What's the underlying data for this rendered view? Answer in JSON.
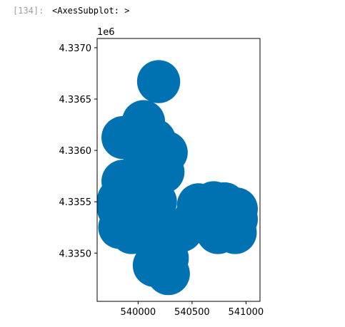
{
  "cell": {
    "prompt": "[134]:",
    "output": "<AxesSubplot: >"
  },
  "chart_data": {
    "type": "scatter",
    "title": "",
    "xlabel": "",
    "ylabel": "",
    "y_offset_label": "1e6",
    "xlim": [
      539620,
      541130
    ],
    "ylim": [
      4334530,
      4337090
    ],
    "x_ticks": [
      540000,
      540500,
      541000
    ],
    "x_tick_labels": [
      "540000",
      "540500",
      "541000"
    ],
    "y_ticks": [
      4335000,
      4335500,
      4336000,
      4336500,
      4337000
    ],
    "y_tick_labels": [
      "4.3350",
      "4.3355",
      "4.3360",
      "4.3365",
      "4.3370"
    ],
    "grid": false,
    "legend": "none",
    "color": "#0072b2",
    "marker_radius_data": 200,
    "points": [
      {
        "x": 540190,
        "y": 4336670
      },
      {
        "x": 539860,
        "y": 4336125
      },
      {
        "x": 540050,
        "y": 4336280
      },
      {
        "x": 540150,
        "y": 4336100
      },
      {
        "x": 540260,
        "y": 4335980
      },
      {
        "x": 540060,
        "y": 4335880
      },
      {
        "x": 540230,
        "y": 4335790
      },
      {
        "x": 539860,
        "y": 4335700
      },
      {
        "x": 540020,
        "y": 4335620
      },
      {
        "x": 539820,
        "y": 4335520
      },
      {
        "x": 539820,
        "y": 4335430
      },
      {
        "x": 539830,
        "y": 4335250
      },
      {
        "x": 539940,
        "y": 4335200
      },
      {
        "x": 540100,
        "y": 4335180
      },
      {
        "x": 540300,
        "y": 4335200
      },
      {
        "x": 540400,
        "y": 4335220
      },
      {
        "x": 540560,
        "y": 4335470
      },
      {
        "x": 540520,
        "y": 4335320
      },
      {
        "x": 540700,
        "y": 4335490
      },
      {
        "x": 540800,
        "y": 4335480
      },
      {
        "x": 540910,
        "y": 4335430
      },
      {
        "x": 540910,
        "y": 4335330
      },
      {
        "x": 540900,
        "y": 4335200
      },
      {
        "x": 540740,
        "y": 4335200
      },
      {
        "x": 540660,
        "y": 4335280
      },
      {
        "x": 540180,
        "y": 4335000
      },
      {
        "x": 540270,
        "y": 4334950
      },
      {
        "x": 540150,
        "y": 4334880
      },
      {
        "x": 540280,
        "y": 4334800
      },
      {
        "x": 540160,
        "y": 4335500
      }
    ]
  }
}
